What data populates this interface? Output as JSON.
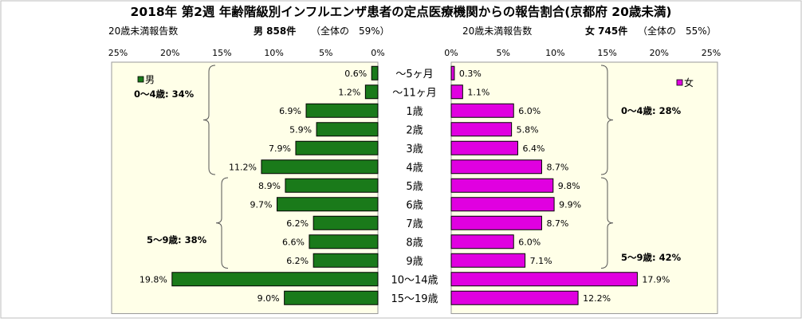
{
  "chart_data": {
    "type": "bar",
    "title": "2018年 第2週 年齢階級別インフルエンザ患者の定点医療機関からの報告割合(京都府 20歳未満)",
    "categories": [
      "～5ヶ月",
      "～11ヶ月",
      "1歳",
      "2歳",
      "3歳",
      "4歳",
      "5歳",
      "6歳",
      "7歳",
      "8歳",
      "9歳",
      "10～14歳",
      "15～19歳"
    ],
    "series": [
      {
        "name": "男",
        "values": [
          0.6,
          1.2,
          6.9,
          5.9,
          7.9,
          11.2,
          8.9,
          9.7,
          6.2,
          6.6,
          6.2,
          19.8,
          9.0
        ],
        "color": "#1a7a1a"
      },
      {
        "name": "女",
        "values": [
          0.3,
          1.1,
          6.0,
          5.8,
          6.4,
          8.7,
          9.8,
          9.9,
          8.7,
          6.0,
          7.1,
          17.9,
          12.2
        ],
        "color": "#e000e0"
      }
    ],
    "value_labels": {
      "male": [
        "0.6%",
        "1.2%",
        "6.9%",
        "5.9%",
        "7.9%",
        "11.2%",
        "8.9%",
        "9.7%",
        "6.2%",
        "6.6%",
        "6.2%",
        "19.8%",
        "9.0%"
      ],
      "female": [
        "0.3%",
        "1.1%",
        "6.0%",
        "5.8%",
        "6.4%",
        "8.7%",
        "9.8%",
        "9.9%",
        "8.7%",
        "6.0%",
        "7.1%",
        "17.9%",
        "12.2%"
      ]
    },
    "xlim": [
      0,
      25
    ],
    "x_ticks": [
      0,
      5,
      10,
      15,
      20,
      25
    ],
    "x_tick_labels": [
      "0%",
      "5%",
      "10%",
      "15%",
      "20%",
      "25%"
    ],
    "male_panel": {
      "sub_left": "20歳未満報告数",
      "sub_right": "男 858件",
      "sub_share": "（全体の　59%）",
      "legend": "男",
      "group_labels": [
        "0～4歳: 34%",
        "5～9歳: 38%"
      ]
    },
    "female_panel": {
      "sub_left": "20歳未満報告数",
      "sub_right": "女 745件",
      "sub_share": "（全体の　55%）",
      "legend": "女",
      "group_labels": [
        "0～4歳: 28%",
        "5～9歳: 42%"
      ]
    },
    "colors": {
      "male_bar": "#1a7a1a",
      "female_bar": "#e000e0",
      "plot_bg": "#ffffe8",
      "bar_edge": "#000000"
    },
    "legend_position": "top (inside each panel)",
    "grid": false
  }
}
